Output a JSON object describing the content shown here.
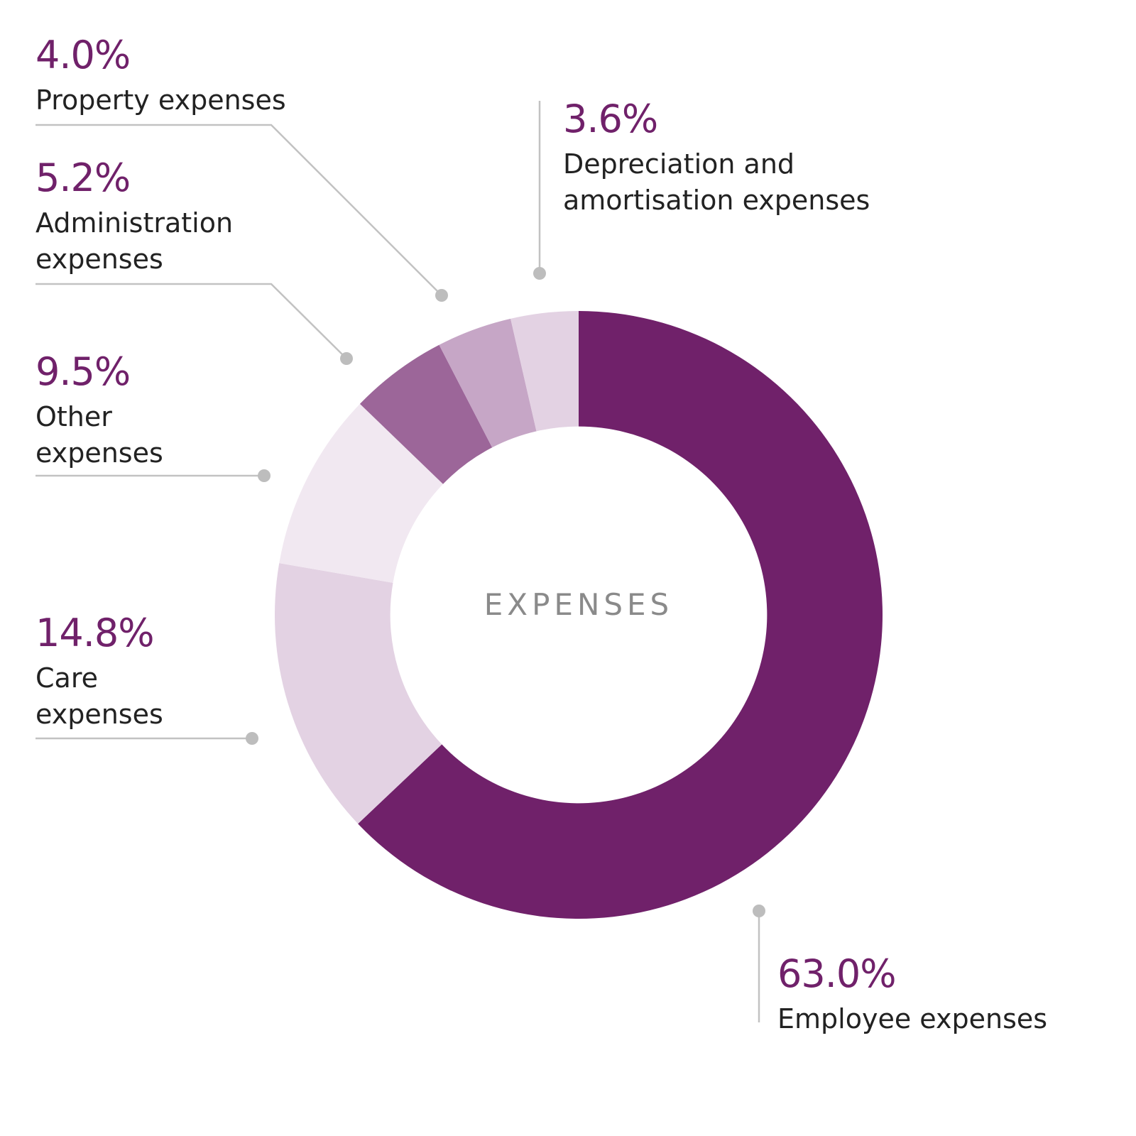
{
  "chart_data": {
    "type": "pie",
    "title": "",
    "center_label": "EXPENSES",
    "slices": [
      {
        "label_lines": [
          "Employee expenses"
        ],
        "value": 63.0,
        "value_text": "63.0%",
        "color": "#70216a"
      },
      {
        "label_lines": [
          "Care",
          "expenses"
        ],
        "value": 14.8,
        "value_text": "14.8%",
        "color": "#e3d2e3"
      },
      {
        "label_lines": [
          "Other",
          "expenses"
        ],
        "value": 9.5,
        "value_text": "9.5%",
        "color": "#f1e8f1"
      },
      {
        "label_lines": [
          "Administration",
          "expenses"
        ],
        "value": 5.2,
        "value_text": "5.2%",
        "color": "#9c6699"
      },
      {
        "label_lines": [
          "Property expenses"
        ],
        "value": 4.0,
        "value_text": "4.0%",
        "color": "#c6a6c6"
      },
      {
        "label_lines": [
          "Depreciation and",
          "amortisation expenses"
        ],
        "value": 3.6,
        "value_text": "3.6%",
        "color": "#e3d2e3"
      }
    ],
    "start": "top",
    "direction": "clockwise",
    "inner_radius_ratio": 0.62,
    "legend": "callout labels with leader lines"
  }
}
